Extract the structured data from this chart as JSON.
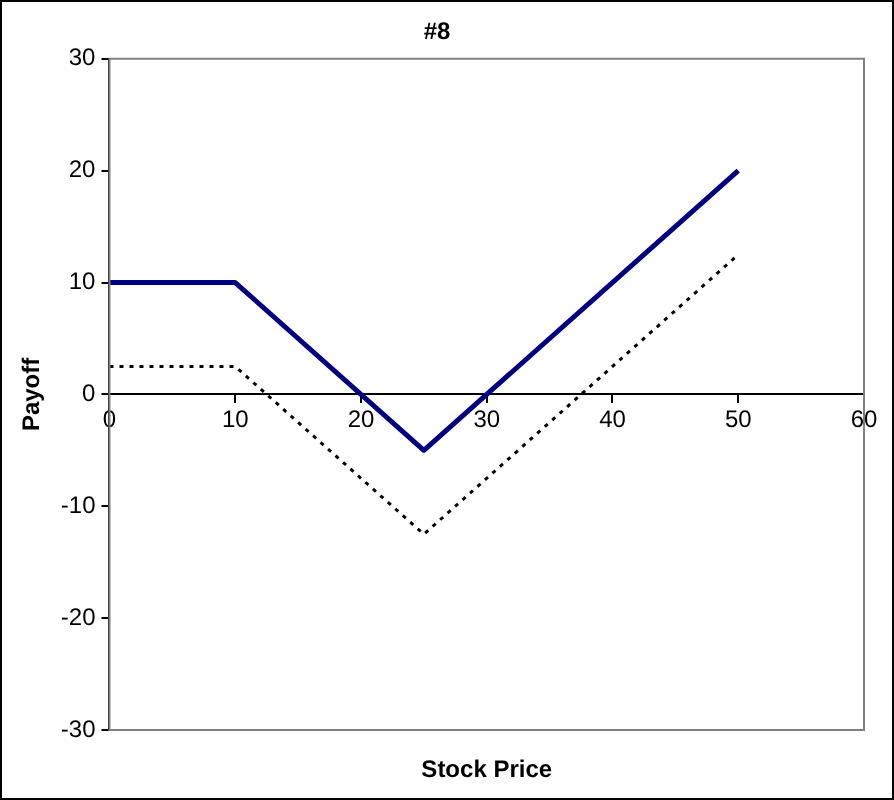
{
  "chart_data": {
    "type": "line",
    "title": "#8",
    "xlabel": "Stock Price",
    "ylabel": "Payoff",
    "xlim": [
      0,
      60
    ],
    "xticks": [
      0,
      10,
      20,
      30,
      40,
      50,
      60
    ],
    "ylim": [
      -30,
      30
    ],
    "yticks": [
      -30,
      -20,
      -10,
      0,
      10,
      20,
      30
    ],
    "grid": false,
    "legend": false,
    "marker": "none",
    "series": [
      {
        "color": "#000080",
        "x": [
          0,
          10,
          25,
          50
        ],
        "values": [
          10,
          10,
          -5,
          20
        ],
        "line_style": "solid"
      },
      {
        "color": "#000000",
        "x": [
          0,
          10,
          25,
          50
        ],
        "values": [
          2.5,
          2.5,
          -12.5,
          12.5
        ],
        "line_style": "dotted"
      }
    ]
  }
}
